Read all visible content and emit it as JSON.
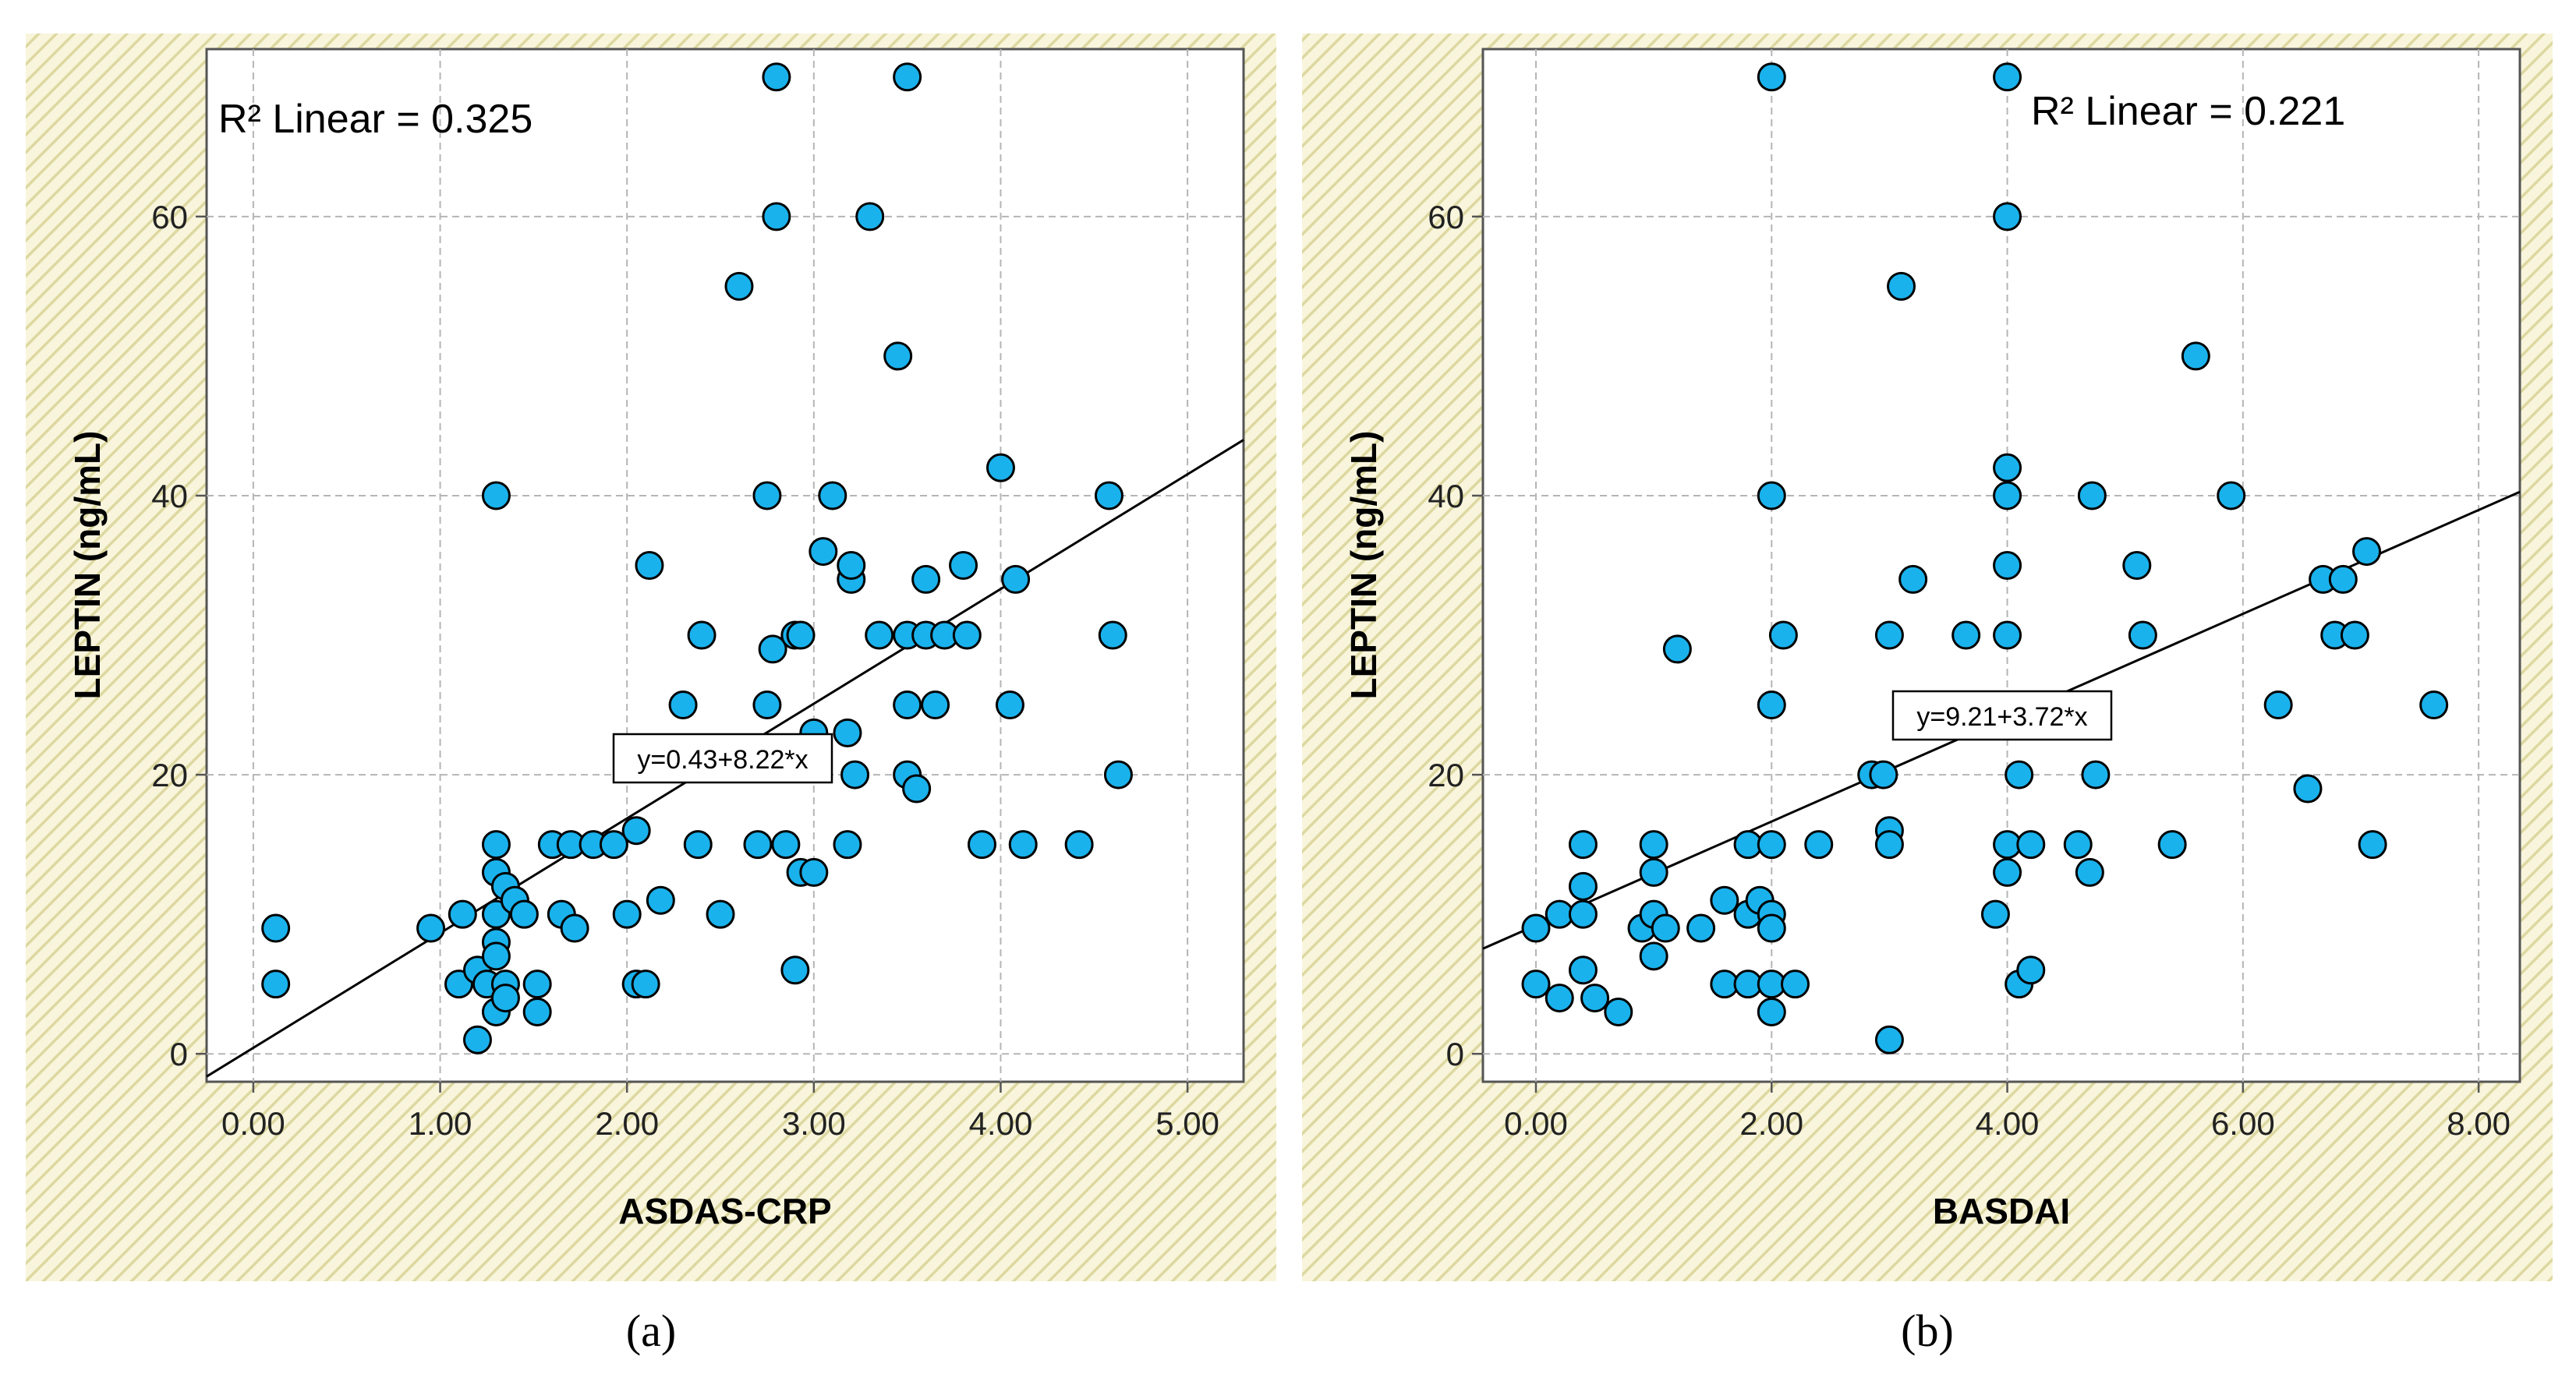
{
  "chart_data": [
    {
      "type": "scatter",
      "panel_label": "(a)",
      "xlabel": "ASDAS-CRP",
      "ylabel": "LEPTIN (ng/mL)",
      "xlim": [
        -0.25,
        5.3
      ],
      "ylim": [
        -2,
        72
      ],
      "xticks": [
        0,
        1,
        2,
        3,
        4,
        5
      ],
      "xtick_labels": [
        "0.00",
        "1.00",
        "2.00",
        "3.00",
        "4.00",
        "5.00"
      ],
      "yticks": [
        0,
        20,
        40,
        60
      ],
      "ytick_labels": [
        "0",
        "20",
        "40",
        "60"
      ],
      "r2_label": "R² Linear = 0.325",
      "equation": "y=0.43+8.22*x",
      "fit": {
        "intercept": 0.43,
        "slope": 8.22
      },
      "grid": true,
      "points": [
        [
          0.12,
          9
        ],
        [
          0.12,
          5
        ],
        [
          0.95,
          9
        ],
        [
          1.12,
          10
        ],
        [
          1.1,
          5
        ],
        [
          1.2,
          6
        ],
        [
          1.2,
          1
        ],
        [
          1.25,
          5
        ],
        [
          1.3,
          15
        ],
        [
          1.3,
          13
        ],
        [
          1.3,
          10
        ],
        [
          1.3,
          8
        ],
        [
          1.3,
          7
        ],
        [
          1.3,
          3
        ],
        [
          1.3,
          40
        ],
        [
          1.35,
          12
        ],
        [
          1.35,
          5
        ],
        [
          1.35,
          4
        ],
        [
          1.4,
          11
        ],
        [
          1.45,
          10
        ],
        [
          1.52,
          5
        ],
        [
          1.52,
          3
        ],
        [
          1.6,
          15
        ],
        [
          1.65,
          10
        ],
        [
          1.7,
          15
        ],
        [
          1.72,
          9
        ],
        [
          1.82,
          15
        ],
        [
          1.93,
          15
        ],
        [
          2.0,
          10
        ],
        [
          2.05,
          16
        ],
        [
          2.05,
          5
        ],
        [
          2.1,
          5
        ],
        [
          2.12,
          35
        ],
        [
          2.18,
          11
        ],
        [
          2.3,
          25
        ],
        [
          2.38,
          15
        ],
        [
          2.4,
          30
        ],
        [
          2.5,
          10
        ],
        [
          2.6,
          55
        ],
        [
          2.7,
          15
        ],
        [
          2.75,
          40
        ],
        [
          2.75,
          25
        ],
        [
          2.78,
          29
        ],
        [
          2.8,
          70
        ],
        [
          2.8,
          60
        ],
        [
          2.85,
          15
        ],
        [
          2.9,
          6
        ],
        [
          2.9,
          30
        ],
        [
          2.93,
          30
        ],
        [
          2.93,
          13
        ],
        [
          3.0,
          23
        ],
        [
          3.0,
          13
        ],
        [
          3.05,
          36
        ],
        [
          3.1,
          40
        ],
        [
          3.18,
          23
        ],
        [
          3.18,
          15
        ],
        [
          3.2,
          34
        ],
        [
          3.2,
          35
        ],
        [
          3.22,
          20
        ],
        [
          3.3,
          60
        ],
        [
          3.35,
          30
        ],
        [
          3.45,
          50
        ],
        [
          3.5,
          70
        ],
        [
          3.5,
          30
        ],
        [
          3.5,
          25
        ],
        [
          3.5,
          20
        ],
        [
          3.55,
          19
        ],
        [
          3.6,
          34
        ],
        [
          3.6,
          30
        ],
        [
          3.65,
          25
        ],
        [
          3.7,
          30
        ],
        [
          3.8,
          35
        ],
        [
          3.82,
          30
        ],
        [
          3.9,
          15
        ],
        [
          4.0,
          42
        ],
        [
          4.05,
          25
        ],
        [
          4.08,
          34
        ],
        [
          4.12,
          15
        ],
        [
          4.42,
          15
        ],
        [
          4.58,
          40
        ],
        [
          4.6,
          30
        ],
        [
          4.63,
          20
        ]
      ]
    },
    {
      "type": "scatter",
      "panel_label": "(b)",
      "xlabel": "BASDAI",
      "ylabel": "LEPTIN (ng/mL)",
      "xlim": [
        -0.45,
        8.35
      ],
      "ylim": [
        -2,
        72
      ],
      "xticks": [
        0,
        2,
        4,
        6,
        8
      ],
      "xtick_labels": [
        "0.00",
        "2.00",
        "4.00",
        "6.00",
        "8.00"
      ],
      "yticks": [
        0,
        20,
        40,
        60
      ],
      "ytick_labels": [
        "0",
        "20",
        "40",
        "60"
      ],
      "r2_label": "R² Linear = 0.221",
      "equation": "y=9.21+3.72*x",
      "fit": {
        "intercept": 9.21,
        "slope": 3.72
      },
      "grid": true,
      "points": [
        [
          0.0,
          9
        ],
        [
          0.0,
          5
        ],
        [
          0.2,
          10
        ],
        [
          0.2,
          4
        ],
        [
          0.4,
          15
        ],
        [
          0.4,
          12
        ],
        [
          0.4,
          10
        ],
        [
          0.4,
          6
        ],
        [
          0.5,
          4
        ],
        [
          0.7,
          3
        ],
        [
          0.9,
          9
        ],
        [
          1.0,
          15
        ],
        [
          1.0,
          13
        ],
        [
          1.0,
          10
        ],
        [
          1.0,
          7
        ],
        [
          1.1,
          9
        ],
        [
          1.2,
          29
        ],
        [
          1.4,
          9
        ],
        [
          1.6,
          11
        ],
        [
          1.6,
          5
        ],
        [
          1.8,
          15
        ],
        [
          1.8,
          10
        ],
        [
          1.8,
          5
        ],
        [
          1.9,
          11
        ],
        [
          2.0,
          70
        ],
        [
          2.0,
          40
        ],
        [
          2.0,
          25
        ],
        [
          2.0,
          15
        ],
        [
          2.0,
          10
        ],
        [
          2.0,
          9
        ],
        [
          2.0,
          5
        ],
        [
          2.0,
          3
        ],
        [
          2.1,
          30
        ],
        [
          2.2,
          5
        ],
        [
          2.4,
          15
        ],
        [
          2.85,
          20
        ],
        [
          2.95,
          20
        ],
        [
          3.0,
          30
        ],
        [
          3.0,
          16
        ],
        [
          3.0,
          15
        ],
        [
          3.0,
          1
        ],
        [
          3.1,
          55
        ],
        [
          3.2,
          34
        ],
        [
          3.65,
          30
        ],
        [
          3.9,
          10
        ],
        [
          4.0,
          70
        ],
        [
          4.0,
          60
        ],
        [
          4.0,
          42
        ],
        [
          4.0,
          40
        ],
        [
          4.0,
          35
        ],
        [
          4.0,
          30
        ],
        [
          4.0,
          15
        ],
        [
          4.0,
          13
        ],
        [
          4.1,
          20
        ],
        [
          4.1,
          5
        ],
        [
          4.2,
          15
        ],
        [
          4.2,
          6
        ],
        [
          4.6,
          15
        ],
        [
          4.7,
          13
        ],
        [
          4.72,
          40
        ],
        [
          4.75,
          20
        ],
        [
          5.1,
          35
        ],
        [
          5.15,
          30
        ],
        [
          5.4,
          15
        ],
        [
          5.6,
          50
        ],
        [
          5.9,
          40
        ],
        [
          6.3,
          25
        ],
        [
          6.55,
          19
        ],
        [
          6.68,
          34
        ],
        [
          6.78,
          30
        ],
        [
          6.85,
          34
        ],
        [
          6.95,
          30
        ],
        [
          7.05,
          36
        ],
        [
          7.1,
          15
        ],
        [
          7.62,
          25
        ]
      ]
    }
  ]
}
